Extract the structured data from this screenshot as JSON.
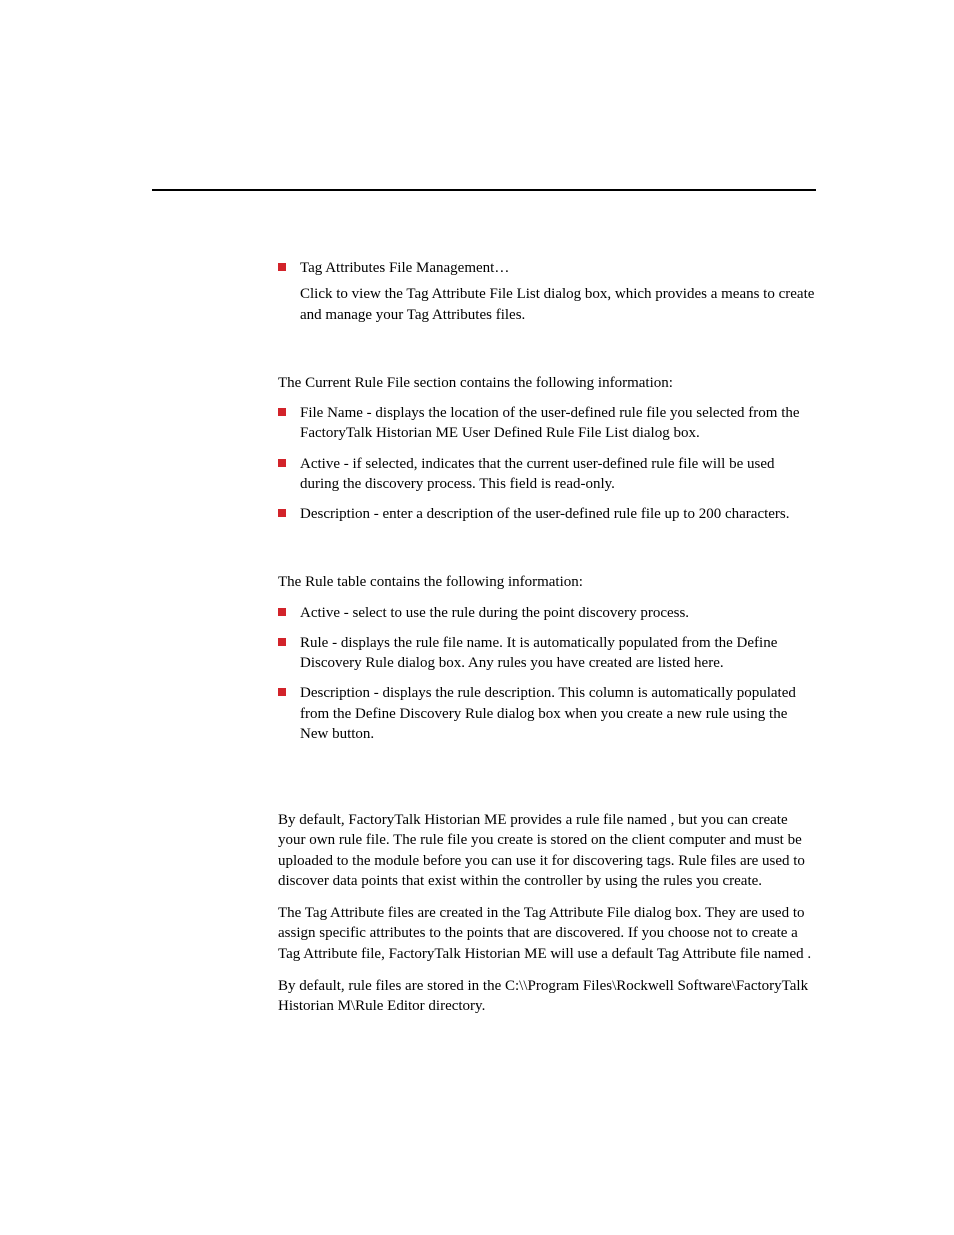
{
  "colors": {
    "bullet": "#d2232a",
    "text": "#000000",
    "background": "#ffffff",
    "rule": "#000000"
  },
  "typography": {
    "body_fontsize_pt": 11,
    "line_height": 1.35,
    "font_family": "Georgia, Times New Roman, serif"
  },
  "section1": {
    "items": [
      {
        "title": "Tag Attributes File Management…",
        "desc": "Click to view the Tag Attribute File List dialog box, which provides a means to create and manage your Tag Attributes files."
      }
    ]
  },
  "section2": {
    "intro": "The Current Rule File section contains the following information:",
    "items": [
      {
        "text": "File Name - displays the location of the user-defined rule file you selected from the FactoryTalk Historian ME User Defined Rule File List dialog box."
      },
      {
        "text": "Active - if selected, indicates that the current user-defined rule file will be used during the discovery process. This field is read-only."
      },
      {
        "text": "Description - enter a description of the user-defined rule file up to 200 characters."
      }
    ]
  },
  "section3": {
    "intro": "The Rule table contains the following information:",
    "items": [
      {
        "text": "Active - select to use the rule during the point discovery process."
      },
      {
        "text": "Rule - displays the rule file name. It is automatically populated from the Define Discovery Rule dialog box. Any rules you have created are listed here."
      },
      {
        "text": "Description - displays the rule description. This column is automatically populated from the Define Discovery Rule dialog box when you create a new rule using the New button."
      }
    ]
  },
  "para1_a": "By default, FactoryTalk Historian ME provides a rule file named ",
  "para1_b": ", but you can create your own rule file. The rule file you create is stored on the client computer and must be uploaded to the module before you can use it for discovering tags. Rule files are used to discover data points that exist within the controller by using the rules you create.",
  "para2_a": "The Tag Attribute files are created in the Tag Attribute File dialog box. They are used to assign specific attributes to the points that are discovered. If you choose not to create a Tag Attribute file, FactoryTalk Historian ME will use a default Tag Attribute file named ",
  "para2_b": ".",
  "para3": "By default, rule files are stored in the C:\\\\Program Files\\Rockwell Software\\FactoryTalk Historian M\\Rule Editor directory."
}
